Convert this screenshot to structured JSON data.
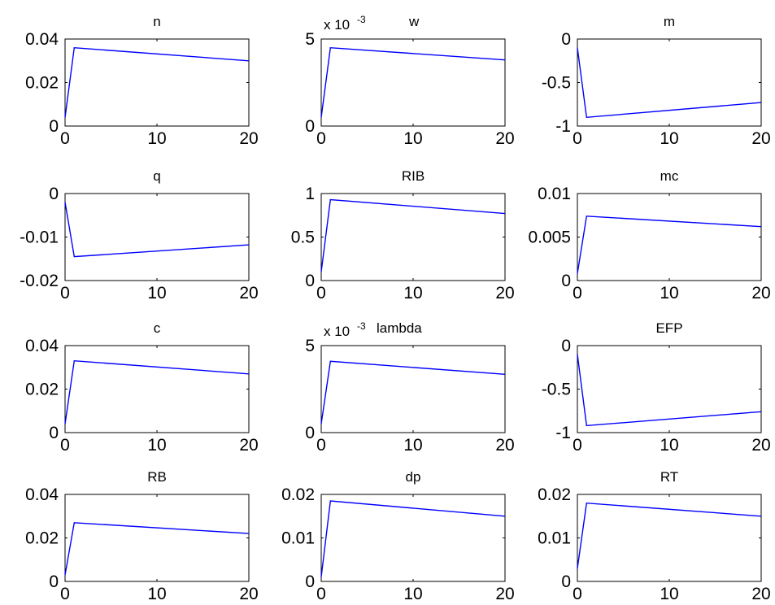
{
  "figure": {
    "background": "#ffffff",
    "line_color": "#0000ff"
  },
  "chart_data": [
    {
      "type": "line",
      "title": "n",
      "xlim": [
        0,
        20
      ],
      "ylim": [
        0,
        0.04
      ],
      "xticks": [
        0,
        10,
        20
      ],
      "xtick_labels": [
        "0",
        "10",
        "20"
      ],
      "yticks": [
        0,
        0.02,
        0.04
      ],
      "ytick_labels": [
        "0",
        "0.02",
        "0.04"
      ],
      "x": [
        0,
        1,
        20
      ],
      "y": [
        0.004,
        0.036,
        0.03
      ]
    },
    {
      "type": "line",
      "title": "w",
      "exponent": {
        "base": "x 10",
        "power": "-3"
      },
      "xlim": [
        0,
        20
      ],
      "ylim": [
        0,
        5
      ],
      "xticks": [
        0,
        10,
        20
      ],
      "xtick_labels": [
        "0",
        "10",
        "20"
      ],
      "yticks": [
        0,
        5
      ],
      "ytick_labels": [
        "0",
        "5"
      ],
      "x": [
        0,
        1,
        20
      ],
      "y": [
        0.5,
        4.5,
        3.8
      ]
    },
    {
      "type": "line",
      "title": "m",
      "xlim": [
        0,
        20
      ],
      "ylim": [
        -1,
        0
      ],
      "xticks": [
        0,
        10,
        20
      ],
      "xtick_labels": [
        "0",
        "10",
        "20"
      ],
      "yticks": [
        -1,
        -0.5,
        0
      ],
      "ytick_labels": [
        "-1",
        "-0.5",
        "0"
      ],
      "x": [
        0,
        1,
        20
      ],
      "y": [
        -0.1,
        -0.9,
        -0.73
      ]
    },
    {
      "type": "line",
      "title": "q",
      "xlim": [
        0,
        20
      ],
      "ylim": [
        -0.02,
        0
      ],
      "xticks": [
        0,
        10,
        20
      ],
      "xtick_labels": [
        "0",
        "10",
        "20"
      ],
      "yticks": [
        -0.02,
        -0.01,
        0
      ],
      "ytick_labels": [
        "-0.02",
        "-0.01",
        "0"
      ],
      "x": [
        0,
        1,
        20
      ],
      "y": [
        -0.002,
        -0.0145,
        -0.0118
      ]
    },
    {
      "type": "line",
      "title": "RIB",
      "xlim": [
        0,
        20
      ],
      "ylim": [
        0,
        1
      ],
      "xticks": [
        0,
        10,
        20
      ],
      "xtick_labels": [
        "0",
        "10",
        "20"
      ],
      "yticks": [
        0,
        0.5,
        1
      ],
      "ytick_labels": [
        "0",
        "0.5",
        "1"
      ],
      "x": [
        0,
        1,
        20
      ],
      "y": [
        0.1,
        0.93,
        0.77
      ]
    },
    {
      "type": "line",
      "title": "mc",
      "xlim": [
        0,
        20
      ],
      "ylim": [
        0,
        0.01
      ],
      "xticks": [
        0,
        10,
        20
      ],
      "xtick_labels": [
        "0",
        "10",
        "20"
      ],
      "yticks": [
        0,
        0.005,
        0.01
      ],
      "ytick_labels": [
        "0",
        "0.005",
        "0.01"
      ],
      "x": [
        0,
        1,
        20
      ],
      "y": [
        0.0008,
        0.0074,
        0.0062
      ]
    },
    {
      "type": "line",
      "title": "c",
      "xlim": [
        0,
        20
      ],
      "ylim": [
        0,
        0.04
      ],
      "xticks": [
        0,
        10,
        20
      ],
      "xtick_labels": [
        "0",
        "10",
        "20"
      ],
      "yticks": [
        0,
        0.02,
        0.04
      ],
      "ytick_labels": [
        "0",
        "0.02",
        "0.04"
      ],
      "x": [
        0,
        1,
        20
      ],
      "y": [
        0.004,
        0.033,
        0.027
      ]
    },
    {
      "type": "line",
      "title": "lambda",
      "exponent": {
        "base": "x 10",
        "power": "-3"
      },
      "xlim": [
        0,
        20
      ],
      "ylim": [
        0,
        5
      ],
      "xticks": [
        0,
        10,
        20
      ],
      "xtick_labels": [
        "0",
        "10",
        "20"
      ],
      "yticks": [
        0,
        5
      ],
      "ytick_labels": [
        "0",
        "5"
      ],
      "x": [
        0,
        1,
        20
      ],
      "y": [
        0.5,
        4.1,
        3.35
      ]
    },
    {
      "type": "line",
      "title": "EFP",
      "xlim": [
        0,
        20
      ],
      "ylim": [
        -1,
        0
      ],
      "xticks": [
        0,
        10,
        20
      ],
      "xtick_labels": [
        "0",
        "10",
        "20"
      ],
      "yticks": [
        -1,
        -0.5,
        0
      ],
      "ytick_labels": [
        "-1",
        "-0.5",
        "0"
      ],
      "x": [
        0,
        1,
        20
      ],
      "y": [
        -0.1,
        -0.92,
        -0.76
      ]
    },
    {
      "type": "line",
      "title": "RB",
      "xlim": [
        0,
        20
      ],
      "ylim": [
        0,
        0.04
      ],
      "xticks": [
        0,
        10,
        20
      ],
      "xtick_labels": [
        "0",
        "10",
        "20"
      ],
      "yticks": [
        0,
        0.02,
        0.04
      ],
      "ytick_labels": [
        "0",
        "0.02",
        "0.04"
      ],
      "x": [
        0,
        1,
        20
      ],
      "y": [
        0.003,
        0.027,
        0.022
      ]
    },
    {
      "type": "line",
      "title": "dp",
      "xlim": [
        0,
        20
      ],
      "ylim": [
        0,
        0.02
      ],
      "xticks": [
        0,
        10,
        20
      ],
      "xtick_labels": [
        "0",
        "10",
        "20"
      ],
      "yticks": [
        0,
        0.01,
        0.02
      ],
      "ytick_labels": [
        "0",
        "0.01",
        "0.02"
      ],
      "x": [
        0,
        1,
        20
      ],
      "y": [
        0.001,
        0.0185,
        0.015
      ]
    },
    {
      "type": "line",
      "title": "RT",
      "xlim": [
        0,
        20
      ],
      "ylim": [
        0,
        0.02
      ],
      "xticks": [
        0,
        10,
        20
      ],
      "xtick_labels": [
        "0",
        "10",
        "20"
      ],
      "yticks": [
        0,
        0.01,
        0.02
      ],
      "ytick_labels": [
        "0",
        "0.01",
        "0.02"
      ],
      "x": [
        0,
        1,
        20
      ],
      "y": [
        0.003,
        0.018,
        0.015
      ]
    }
  ]
}
